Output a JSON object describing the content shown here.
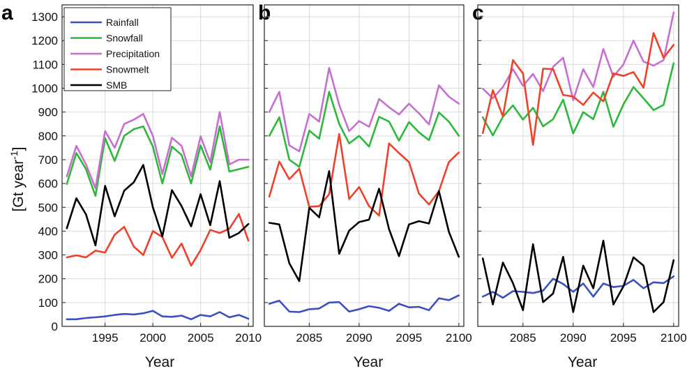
{
  "chart_data": [
    {
      "type": "line",
      "panel": "a",
      "x": [
        1991,
        1992,
        1993,
        1994,
        1995,
        1996,
        1997,
        1998,
        1999,
        2000,
        2001,
        2002,
        2003,
        2004,
        2005,
        2006,
        2007,
        2008,
        2009,
        2010
      ],
      "xlim": [
        1990.5,
        2010.5
      ],
      "xticks": [
        1995,
        2000,
        2005,
        2010
      ],
      "ylim": [
        0,
        1350
      ],
      "yticks": [
        0,
        100,
        200,
        300,
        400,
        500,
        600,
        700,
        800,
        900,
        1000,
        1100,
        1200,
        1300
      ],
      "xlabel": "Year",
      "ylabel": "[Gt year",
      "ylabel_sup": "-1",
      "ylabel_end": "]",
      "grid": true,
      "legend": "top-left",
      "series": [
        {
          "name": "Rainfall",
          "color": "#3b4fc2",
          "values": [
            30,
            30,
            35,
            38,
            42,
            48,
            52,
            50,
            55,
            65,
            42,
            40,
            45,
            30,
            48,
            42,
            60,
            38,
            48,
            32
          ]
        },
        {
          "name": "Snowfall",
          "color": "#2db83a",
          "values": [
            598,
            728,
            660,
            548,
            790,
            695,
            800,
            828,
            840,
            755,
            600,
            755,
            720,
            600,
            760,
            658,
            840,
            650,
            660,
            670
          ]
        },
        {
          "name": "Precipitation",
          "color": "#c76fd0",
          "values": [
            630,
            758,
            680,
            580,
            820,
            750,
            850,
            868,
            892,
            800,
            640,
            792,
            758,
            630,
            798,
            690,
            900,
            680,
            700,
            700
          ]
        },
        {
          "name": "Snowmelt",
          "color": "#f0402a",
          "values": [
            290,
            298,
            290,
            318,
            310,
            385,
            418,
            335,
            300,
            400,
            375,
            288,
            348,
            255,
            320,
            405,
            392,
            410,
            472,
            360
          ]
        },
        {
          "name": "SMB",
          "color": "#000000",
          "values": [
            412,
            538,
            470,
            340,
            590,
            462,
            570,
            605,
            678,
            500,
            378,
            572,
            505,
            420,
            555,
            425,
            610,
            372,
            392,
            430
          ]
        }
      ]
    },
    {
      "type": "line",
      "panel": "b",
      "x": [
        2081,
        2082,
        2083,
        2084,
        2085,
        2086,
        2087,
        2088,
        2089,
        2090,
        2091,
        2092,
        2093,
        2094,
        2095,
        2096,
        2097,
        2098,
        2099,
        2100
      ],
      "xlim": [
        2080.5,
        2100.5
      ],
      "xticks": [
        2085,
        2090,
        2095,
        2100
      ],
      "ylim": [
        0,
        1350
      ],
      "xlabel": "Year",
      "grid": true,
      "series": [
        {
          "name": "Rainfall",
          "color": "#3b4fc2",
          "values": [
            95,
            108,
            62,
            60,
            72,
            75,
            100,
            102,
            62,
            72,
            85,
            78,
            65,
            95,
            80,
            82,
            68,
            118,
            110,
            130
          ]
        },
        {
          "name": "Snowfall",
          "color": "#2db83a",
          "values": [
            800,
            878,
            700,
            670,
            822,
            788,
            985,
            850,
            768,
            800,
            755,
            880,
            860,
            780,
            858,
            815,
            782,
            898,
            860,
            800
          ]
        },
        {
          "name": "Precipitation",
          "color": "#c76fd0",
          "values": [
            900,
            985,
            760,
            735,
            892,
            860,
            1085,
            930,
            820,
            862,
            838,
            955,
            920,
            890,
            935,
            895,
            848,
            1012,
            965,
            935
          ]
        },
        {
          "name": "Snowmelt",
          "color": "#f0402a",
          "values": [
            545,
            692,
            618,
            662,
            502,
            505,
            555,
            808,
            535,
            585,
            505,
            465,
            768,
            728,
            690,
            558,
            512,
            568,
            690,
            730
          ]
        },
        {
          "name": "SMB",
          "color": "#000000",
          "values": [
            435,
            428,
            265,
            190,
            498,
            458,
            652,
            305,
            402,
            438,
            448,
            578,
            408,
            295,
            428,
            442,
            432,
            568,
            398,
            292
          ]
        }
      ]
    },
    {
      "type": "line",
      "panel": "c",
      "x": [
        2081,
        2082,
        2083,
        2084,
        2085,
        2086,
        2087,
        2088,
        2089,
        2090,
        2091,
        2092,
        2093,
        2094,
        2095,
        2096,
        2097,
        2098,
        2099,
        2100
      ],
      "xlim": [
        2080.5,
        2100.5
      ],
      "xticks": [
        2085,
        2090,
        2095,
        2100
      ],
      "ylim": [
        0,
        1350
      ],
      "xlabel": "Year",
      "grid": true,
      "series": [
        {
          "name": "Rainfall",
          "color": "#3b4fc2",
          "values": [
            125,
            145,
            120,
            148,
            145,
            140,
            150,
            200,
            178,
            145,
            180,
            125,
            180,
            165,
            170,
            195,
            160,
            185,
            182,
            210
          ]
        },
        {
          "name": "Snowfall",
          "color": "#2db83a",
          "values": [
            878,
            802,
            880,
            928,
            868,
            918,
            840,
            870,
            952,
            810,
            900,
            870,
            985,
            838,
            932,
            1005,
            958,
            908,
            930,
            1105
          ]
        },
        {
          "name": "Precipitation",
          "color": "#c76fd0",
          "values": [
            998,
            958,
            1005,
            1080,
            1010,
            1060,
            988,
            1090,
            1128,
            950,
            1080,
            1005,
            1165,
            1048,
            1100,
            1200,
            1112,
            1095,
            1118,
            1318
          ]
        },
        {
          "name": "Snowmelt",
          "color": "#f0402a",
          "values": [
            812,
            992,
            882,
            1118,
            1062,
            762,
            1082,
            1080,
            972,
            965,
            930,
            982,
            945,
            1062,
            1052,
            1068,
            1002,
            1232,
            1128,
            1182
          ]
        },
        {
          "name": "SMB",
          "color": "#000000",
          "values": [
            285,
            92,
            268,
            182,
            68,
            345,
            102,
            138,
            292,
            60,
            255,
            160,
            360,
            92,
            168,
            290,
            255,
            60,
            102,
            278
          ]
        }
      ]
    }
  ]
}
